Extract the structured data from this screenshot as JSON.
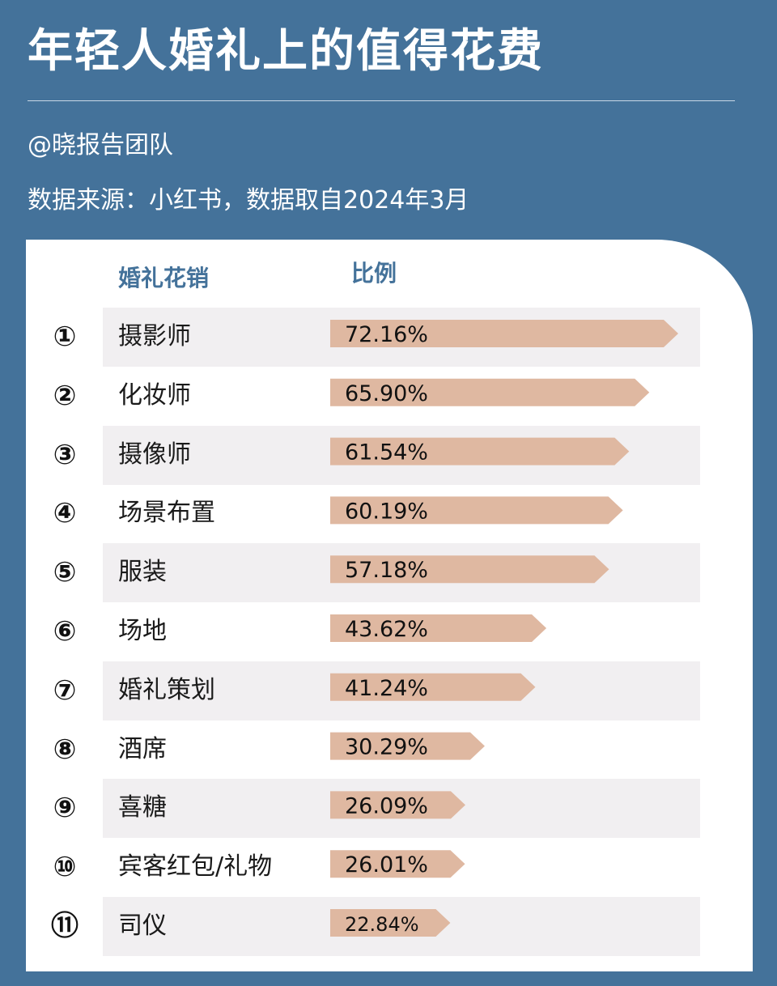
{
  "header": {
    "title": "年轻人婚礼上的值得花费",
    "author": "@晓报告团队",
    "source": "数据来源：小红书，数据取自2024年3月"
  },
  "table": {
    "col_item": "婚礼花销",
    "col_ratio": "比例"
  },
  "colors": {
    "background": "#44729a",
    "bar": "#dfb8a1",
    "header_text": "#44729a",
    "row_shade": "#f1eff1"
  },
  "chart_data": {
    "type": "bar",
    "orientation": "horizontal",
    "title": "年轻人婚礼上的值得花费",
    "xlabel": "比例",
    "ylabel": "婚礼花销",
    "unit": "%",
    "xlim": [
      0,
      80
    ],
    "categories": [
      "摄影师",
      "化妆师",
      "摄像师",
      "场景布置",
      "服装",
      "场地",
      "婚礼策划",
      "酒席",
      "喜糖",
      "宾客红包/礼物",
      "司仪"
    ],
    "ranks": [
      "①",
      "②",
      "③",
      "④",
      "⑤",
      "⑥",
      "⑦",
      "⑧",
      "⑨",
      "⑩",
      "⑪"
    ],
    "values": [
      72.16,
      65.9,
      61.54,
      60.19,
      57.18,
      43.62,
      41.24,
      30.29,
      26.09,
      26.01,
      22.84
    ],
    "value_labels": [
      "72.16%",
      "65.90%",
      "61.54%",
      "60.19%",
      "57.18%",
      "43.62%",
      "41.24%",
      "30.29%",
      "26.09%",
      "26.01%",
      "22.84%"
    ]
  }
}
